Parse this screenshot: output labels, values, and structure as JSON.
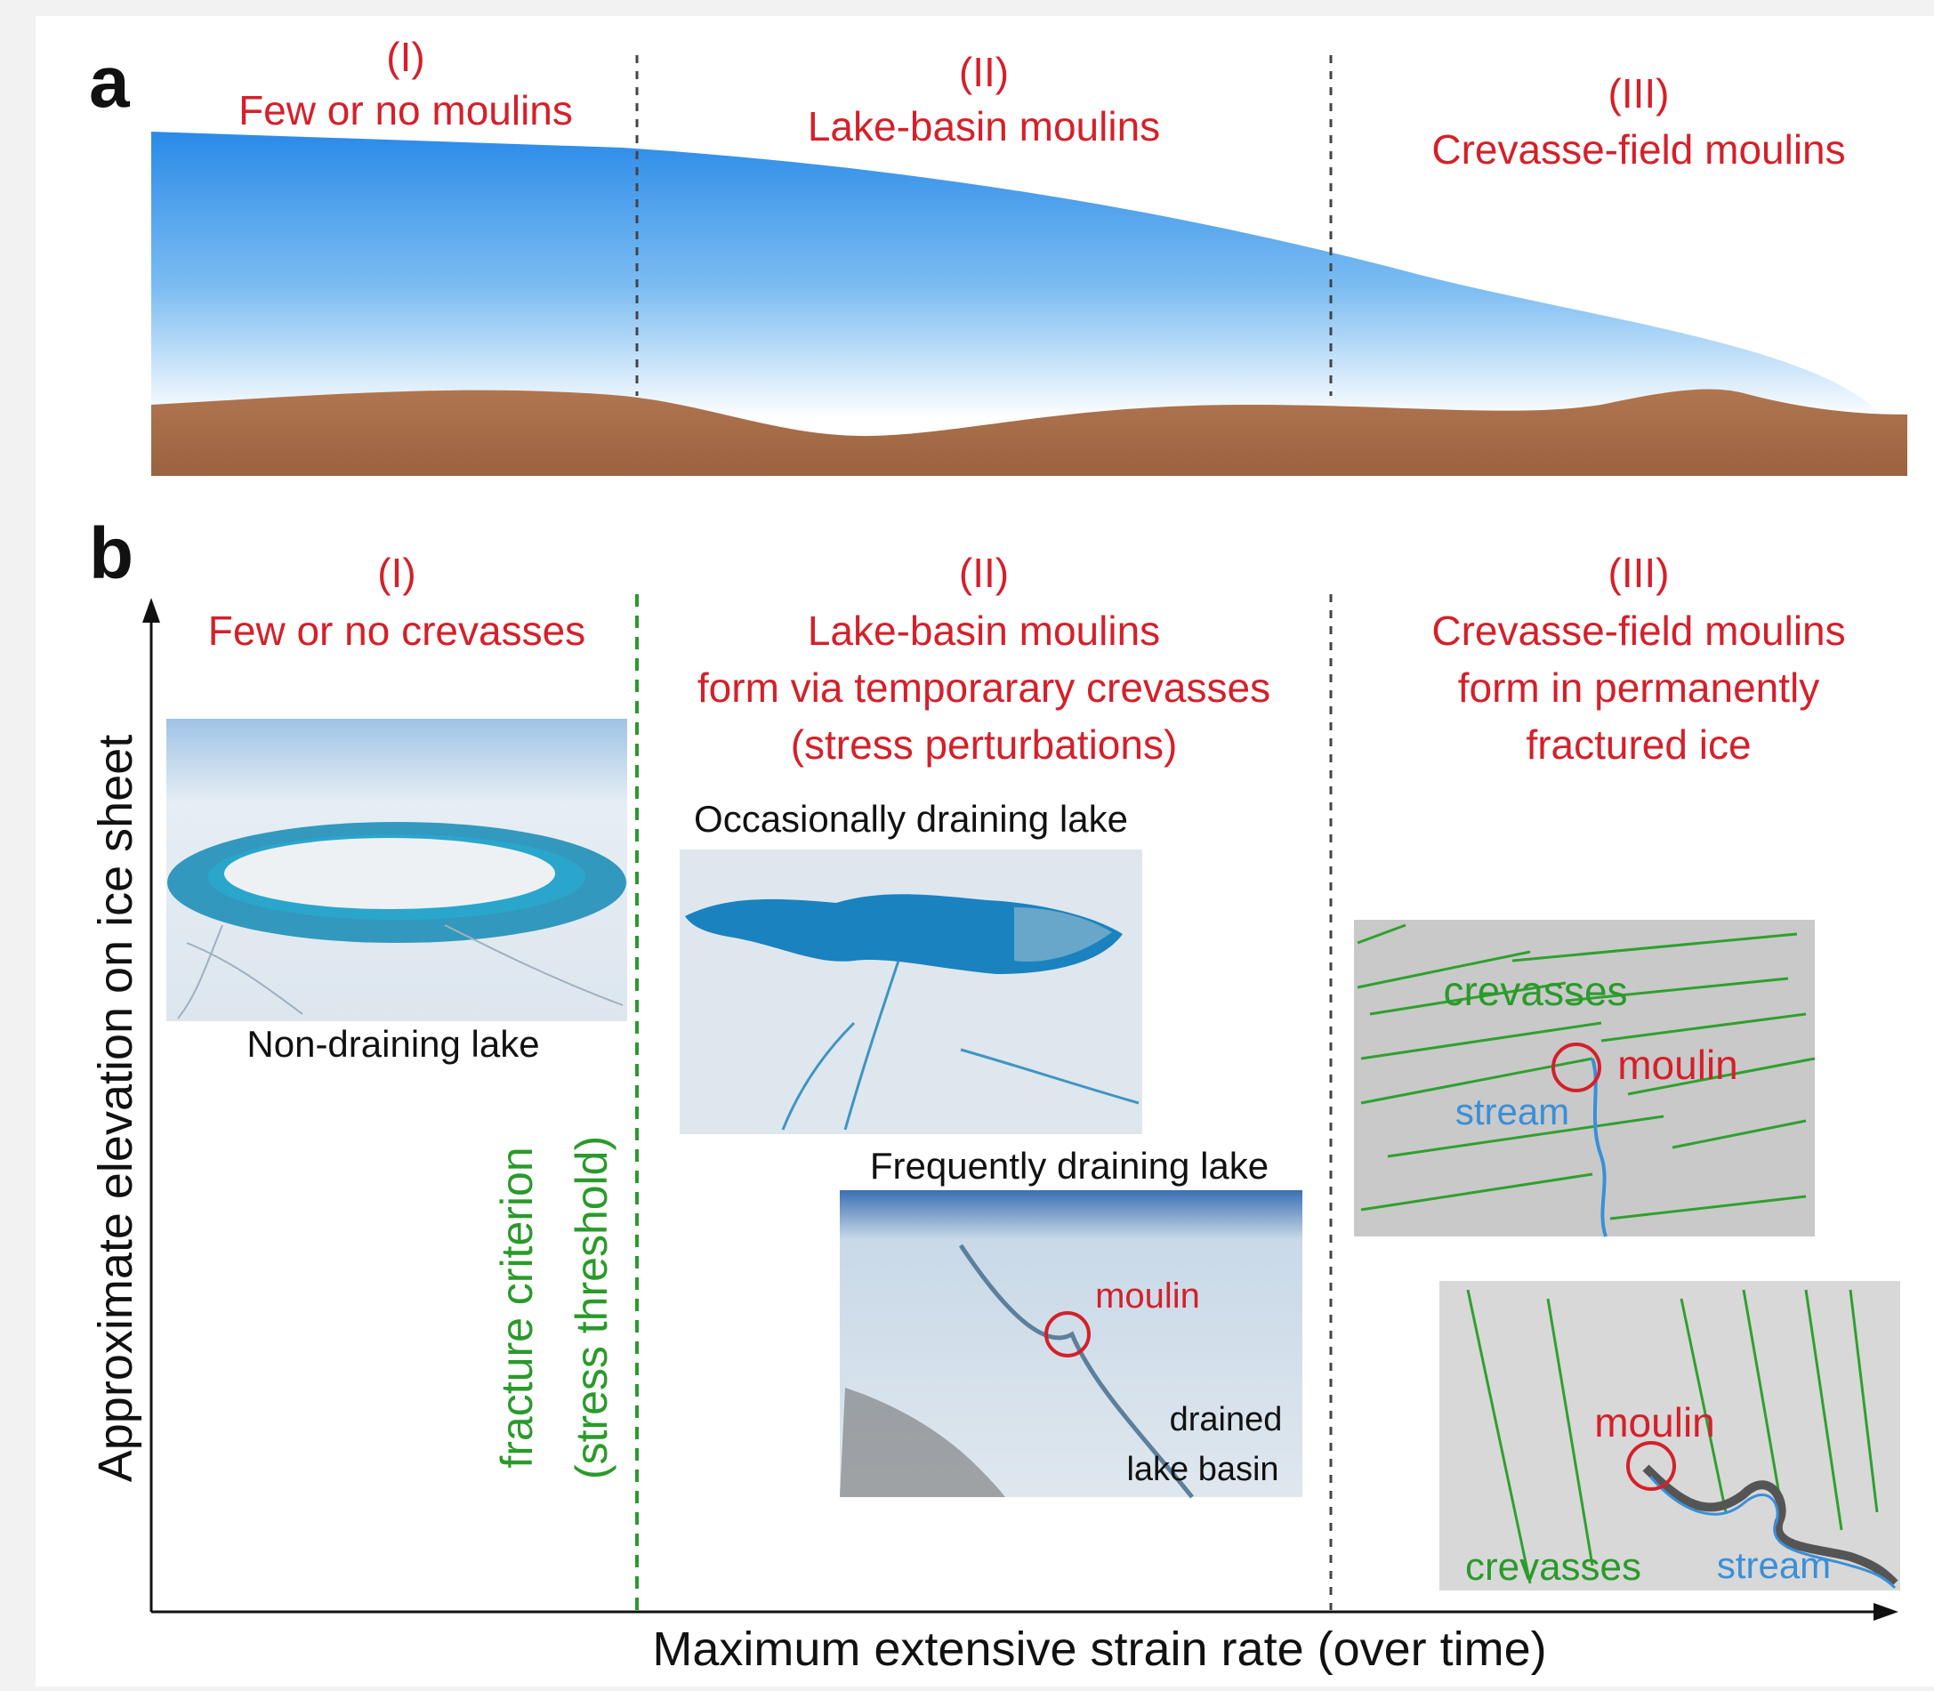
{
  "panel_a": {
    "letter": "a",
    "zones": [
      {
        "num": "(I)",
        "title": "Few or no moulins"
      },
      {
        "num": "(II)",
        "title": "Lake-basin moulins"
      },
      {
        "num": "(III)",
        "title": "Crevasse-field moulins"
      }
    ]
  },
  "panel_b": {
    "letter": "b",
    "zones": [
      {
        "num": "(I)",
        "lines": [
          "Few or no crevasses"
        ]
      },
      {
        "num": "(II)",
        "lines": [
          "Lake-basin moulins",
          "form via temporarary crevasses",
          "(stress perturbations)"
        ]
      },
      {
        "num": "(III)",
        "lines": [
          "Crevasse-field moulins",
          "form in permanently",
          "fractured ice"
        ]
      }
    ],
    "y_axis_label": "Approximate elevation on ice sheet",
    "x_axis_label": "Maximum extensive strain rate (over time)",
    "threshold_label": [
      "fracture criterion",
      "(stress threshold)"
    ],
    "photos": {
      "non_draining": {
        "caption": "Non-draining lake"
      },
      "occasional": {
        "caption": "Occasionally draining lake"
      },
      "frequent": {
        "caption": "Frequently draining lake",
        "moulin": "moulin",
        "basin_label": [
          "drained",
          "lake basin"
        ]
      },
      "crevasse_top": {
        "crevasses": "crevasses",
        "moulin": "moulin",
        "stream": "stream"
      },
      "crevasse_bottom": {
        "crevasses": "crevasses",
        "moulin": "moulin",
        "stream": "stream"
      }
    }
  },
  "colors": {
    "zone_label": "#d4202a",
    "threshold": "#2a9a2a",
    "stream": "#3a8fd8",
    "bed": "#a86e48",
    "ice": "#2a8ae8"
  }
}
